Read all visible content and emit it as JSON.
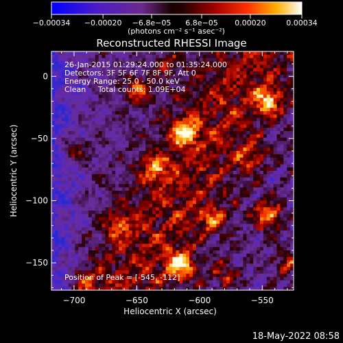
{
  "chart_data": {
    "type": "heatmap",
    "title": "Reconstructed RHESSI Image",
    "xlabel": "Heliocentric X (arcsec)",
    "ylabel": "Heliocentric Y (arcsec)",
    "xlim": [
      -718,
      -525
    ],
    "ylim": [
      -172,
      20
    ],
    "xticks": [
      -700,
      -650,
      -600,
      -550
    ],
    "yticks": [
      0,
      -50,
      -100,
      -150
    ],
    "xtick_labels": [
      "−700",
      "−650",
      "−600",
      "−550"
    ],
    "ytick_labels": [
      "0",
      "−50",
      "−100",
      "−150"
    ],
    "colorbar": {
      "range": [
        -0.00034,
        0.00034
      ],
      "ticks": [
        -0.00034,
        -0.0002,
        -6.8e-05,
        6.8e-05,
        0.0002,
        0.00034
      ],
      "tick_labels": [
        "−0.00034",
        "−0.00020",
        "−6.8e−05",
        "6.8e−05",
        "0.00020",
        "0.00034"
      ],
      "unit_label": "(photons cm⁻² s⁻¹ asec⁻²)",
      "colormap": "rainbow-to-hot"
    },
    "annotations": [
      "26-Jan-2015 01:29:24.000 to 01:35:24.000",
      "Detectors: 3F 5F 6F 7F 8F 9F, Att 0",
      "Energy Range: 25.0 - 50.0 keV",
      "Clean     Total counts: 1.09E+04",
      "Position of Peak = [-545, -112]"
    ],
    "peak": [
      -545,
      -112
    ],
    "hotspots": [
      {
        "x": -615,
        "y": -152,
        "amp": 1.0
      },
      {
        "x": -545,
        "y": -112,
        "amp": 0.95
      },
      {
        "x": -612,
        "y": -45,
        "amp": 0.9
      },
      {
        "x": -545,
        "y": -20,
        "amp": 0.85
      },
      {
        "x": -650,
        "y": -10,
        "amp": 0.75
      },
      {
        "x": -635,
        "y": -75,
        "amp": 0.7
      },
      {
        "x": -590,
        "y": -115,
        "amp": 0.65
      },
      {
        "x": -700,
        "y": -60,
        "amp": 0.6
      },
      {
        "x": -560,
        "y": -65,
        "amp": 0.6
      },
      {
        "x": -665,
        "y": -120,
        "amp": 0.55
      },
      {
        "x": -690,
        "y": -165,
        "amp": 0.5
      },
      {
        "x": -580,
        "y": -160,
        "amp": 0.5
      },
      {
        "x": -530,
        "y": -150,
        "amp": 0.5
      },
      {
        "x": -625,
        "y": 10,
        "amp": 0.45
      }
    ]
  },
  "footer": {
    "timestamp": "18-May-2022 08:58"
  }
}
